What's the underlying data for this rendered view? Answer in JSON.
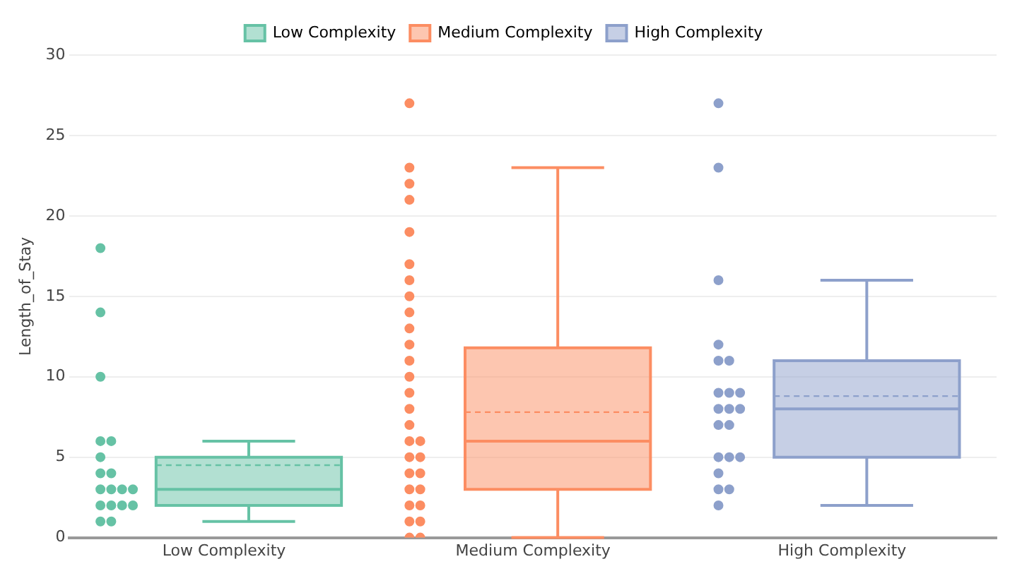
{
  "chart_data": {
    "type": "box",
    "ylabel": "Length_of_Stay",
    "categories": [
      "Low Complexity",
      "Medium Complexity",
      "High Complexity"
    ],
    "ylim": [
      0,
      30
    ],
    "yticks": [
      0,
      5,
      10,
      15,
      20,
      25,
      30
    ],
    "grid": "y",
    "legend": "top",
    "series": [
      {
        "name": "Low Complexity",
        "color": "#66c2a5",
        "boxes": [
          {
            "low": 1,
            "q1": 2,
            "median": 3,
            "q3": 5,
            "high": 6,
            "mean": 4.5
          },
          null,
          null
        ]
      },
      {
        "name": "Medium Complexity",
        "color": "#fc8d62",
        "boxes": [
          null,
          {
            "low": 0,
            "q1": 3,
            "median": 6,
            "q3": 11.8,
            "high": 23,
            "mean": 7.8
          },
          null
        ]
      },
      {
        "name": "High Complexity",
        "color": "#8da0cb",
        "boxes": [
          null,
          null,
          {
            "low": 2,
            "q1": 5,
            "median": 8,
            "q3": 11,
            "high": 16,
            "mean": 8.8
          }
        ]
      },
      {
        "type": "scatter",
        "color": "#66c2a5",
        "x": [
          "Low Complexity",
          "Low Complexity",
          "Low Complexity",
          "Low Complexity",
          "Low Complexity",
          "Low Complexity",
          "Low Complexity",
          "Low Complexity",
          "Low Complexity",
          "Low Complexity",
          "Low Complexity",
          "Low Complexity",
          "Low Complexity",
          "Low Complexity",
          "Low Complexity",
          "Low Complexity",
          "Low Complexity",
          "Low Complexity"
        ],
        "values": [
          18,
          14,
          10,
          6,
          6,
          5,
          4,
          4,
          3,
          3,
          3,
          3,
          2,
          2,
          2,
          2,
          1,
          1
        ]
      },
      {
        "type": "scatter",
        "color": "#fc8d62",
        "x": [
          "Medium Complexity",
          "Medium Complexity",
          "Medium Complexity",
          "Medium Complexity",
          "Medium Complexity",
          "Medium Complexity",
          "Medium Complexity",
          "Medium Complexity",
          "Medium Complexity",
          "Medium Complexity",
          "Medium Complexity",
          "Medium Complexity",
          "Medium Complexity",
          "Medium Complexity",
          "Medium Complexity",
          "Medium Complexity",
          "Medium Complexity",
          "Medium Complexity",
          "Medium Complexity",
          "Medium Complexity",
          "Medium Complexity",
          "Medium Complexity",
          "Medium Complexity",
          "Medium Complexity",
          "Medium Complexity",
          "Medium Complexity",
          "Medium Complexity",
          "Medium Complexity",
          "Medium Complexity",
          "Medium Complexity"
        ],
        "values": [
          27,
          23,
          22,
          21,
          19,
          17,
          16,
          15,
          14,
          13,
          12,
          11,
          10,
          9,
          8,
          7,
          6,
          6,
          5,
          5,
          4,
          4,
          3,
          3,
          2,
          2,
          1,
          1,
          0,
          0
        ]
      },
      {
        "type": "scatter",
        "color": "#8da0cb",
        "x": [
          "High Complexity",
          "High Complexity",
          "High Complexity",
          "High Complexity",
          "High Complexity",
          "High Complexity",
          "High Complexity",
          "High Complexity",
          "High Complexity",
          "High Complexity",
          "High Complexity",
          "High Complexity",
          "High Complexity",
          "High Complexity",
          "High Complexity",
          "High Complexity",
          "High Complexity",
          "High Complexity",
          "High Complexity",
          "High Complexity",
          "High Complexity"
        ],
        "values": [
          27,
          23,
          16,
          12,
          11,
          11,
          9,
          9,
          9,
          8,
          8,
          8,
          7,
          7,
          5,
          5,
          5,
          4,
          3,
          3,
          2
        ]
      }
    ]
  }
}
